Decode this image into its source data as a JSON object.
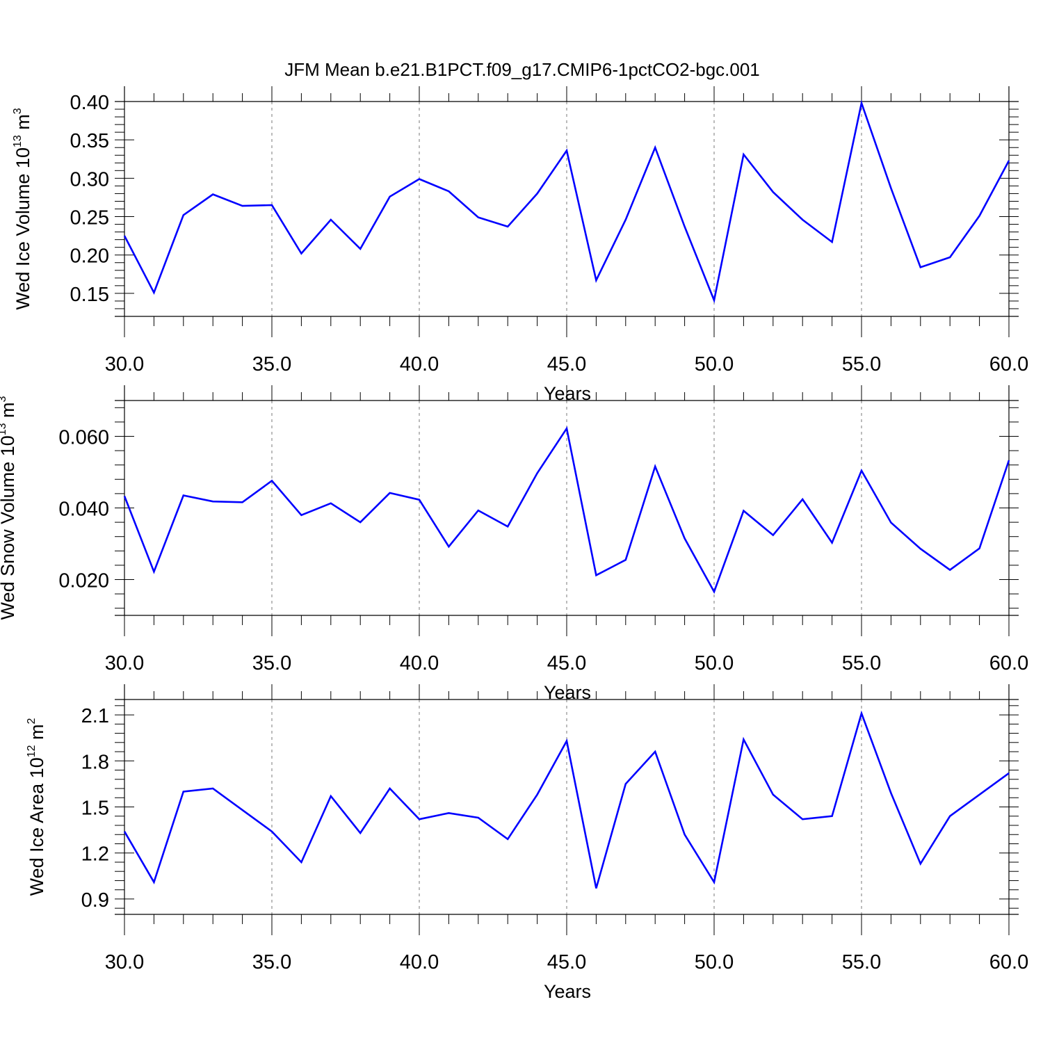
{
  "title": "JFM Mean b.e21.B1PCT.f09_g17.CMIP6-1pctCO2-bgc.001",
  "chart_data": [
    {
      "type": "line",
      "xlabel": "Years",
      "ylabel": {
        "main": "Wed Ice Volume 10",
        "exp": "13",
        "unit": " m",
        "unit_exp": "3"
      },
      "xlim": [
        30,
        60
      ],
      "ylim": [
        0.12,
        0.4
      ],
      "xticks": [
        30,
        35,
        40,
        45,
        50,
        55,
        60
      ],
      "xtick_labels": [
        "30.0",
        "35.0",
        "40.0",
        "45.0",
        "50.0",
        "55.0",
        "60.0"
      ],
      "yticks": [
        0.15,
        0.2,
        0.25,
        0.3,
        0.35,
        0.4
      ],
      "ytick_labels": [
        "0.15",
        "0.20",
        "0.25",
        "0.30",
        "0.35",
        "0.40"
      ],
      "x": [
        30,
        31,
        32,
        33,
        34,
        35,
        36,
        37,
        38,
        39,
        40,
        41,
        42,
        43,
        44,
        45,
        46,
        47,
        48,
        49,
        50,
        51,
        52,
        53,
        54,
        55,
        56,
        57,
        58,
        59,
        60
      ],
      "values": [
        0.225,
        0.151,
        0.252,
        0.279,
        0.264,
        0.265,
        0.202,
        0.246,
        0.208,
        0.276,
        0.299,
        0.283,
        0.249,
        0.237,
        0.28,
        0.336,
        0.167,
        0.246,
        0.34,
        0.237,
        0.141,
        0.331,
        0.282,
        0.246,
        0.217,
        0.398,
        0.287,
        0.184,
        0.197,
        0.251,
        0.323
      ],
      "vgrid": [
        35,
        40,
        45,
        50,
        55
      ],
      "color": "#0000ff"
    },
    {
      "type": "line",
      "xlabel": "Years",
      "ylabel": {
        "main": "Wed Snow Volume 10",
        "exp": "13",
        "unit": " m",
        "unit_exp": "3"
      },
      "xlim": [
        30,
        60
      ],
      "ylim": [
        0.01,
        0.07
      ],
      "xticks": [
        30,
        35,
        40,
        45,
        50,
        55,
        60
      ],
      "xtick_labels": [
        "30.0",
        "35.0",
        "40.0",
        "45.0",
        "50.0",
        "55.0",
        "60.0"
      ],
      "yticks": [
        0.02,
        0.04,
        0.06
      ],
      "ytick_labels": [
        "0.020",
        "0.040",
        "0.060"
      ],
      "x": [
        30,
        31,
        32,
        33,
        34,
        35,
        36,
        37,
        38,
        39,
        40,
        41,
        42,
        43,
        44,
        45,
        46,
        47,
        48,
        49,
        50,
        51,
        52,
        53,
        54,
        55,
        56,
        57,
        58,
        59,
        60
      ],
      "values": [
        0.0433,
        0.0222,
        0.0435,
        0.0418,
        0.0416,
        0.0476,
        0.038,
        0.0413,
        0.036,
        0.0442,
        0.0423,
        0.0292,
        0.0393,
        0.0348,
        0.0497,
        0.0622,
        0.0212,
        0.0255,
        0.0516,
        0.0315,
        0.0166,
        0.0392,
        0.0324,
        0.0424,
        0.0303,
        0.0504,
        0.0359,
        0.0286,
        0.0227,
        0.0287,
        0.0533
      ],
      "vgrid": [
        35,
        40,
        45,
        50,
        55
      ],
      "color": "#0000ff"
    },
    {
      "type": "line",
      "xlabel": "Years",
      "ylabel": {
        "main": "Wed Ice Area 10",
        "exp": "12",
        "unit": " m",
        "unit_exp": "2"
      },
      "xlim": [
        30,
        60
      ],
      "ylim": [
        0.8,
        2.2
      ],
      "xticks": [
        30,
        35,
        40,
        45,
        50,
        55,
        60
      ],
      "xtick_labels": [
        "30.0",
        "35.0",
        "40.0",
        "45.0",
        "50.0",
        "55.0",
        "60.0"
      ],
      "yticks": [
        0.9,
        1.2,
        1.5,
        1.8,
        2.1
      ],
      "ytick_labels": [
        "0.9",
        "1.2",
        "1.5",
        "1.8",
        "2.1"
      ],
      "x": [
        30,
        31,
        32,
        33,
        34,
        35,
        36,
        37,
        38,
        39,
        40,
        41,
        42,
        43,
        44,
        45,
        46,
        47,
        48,
        49,
        50,
        51,
        52,
        53,
        54,
        55,
        56,
        57,
        58,
        59,
        60
      ],
      "values": [
        1.34,
        1.01,
        1.6,
        1.62,
        1.48,
        1.34,
        1.14,
        1.57,
        1.33,
        1.62,
        1.42,
        1.46,
        1.43,
        1.29,
        1.58,
        1.93,
        0.97,
        1.65,
        1.86,
        1.32,
        1.01,
        1.94,
        1.58,
        1.42,
        1.44,
        2.11,
        1.59,
        1.13,
        1.44,
        1.58,
        1.72
      ],
      "vgrid": [
        35,
        40,
        45,
        50,
        55
      ],
      "color": "#0000ff"
    }
  ]
}
